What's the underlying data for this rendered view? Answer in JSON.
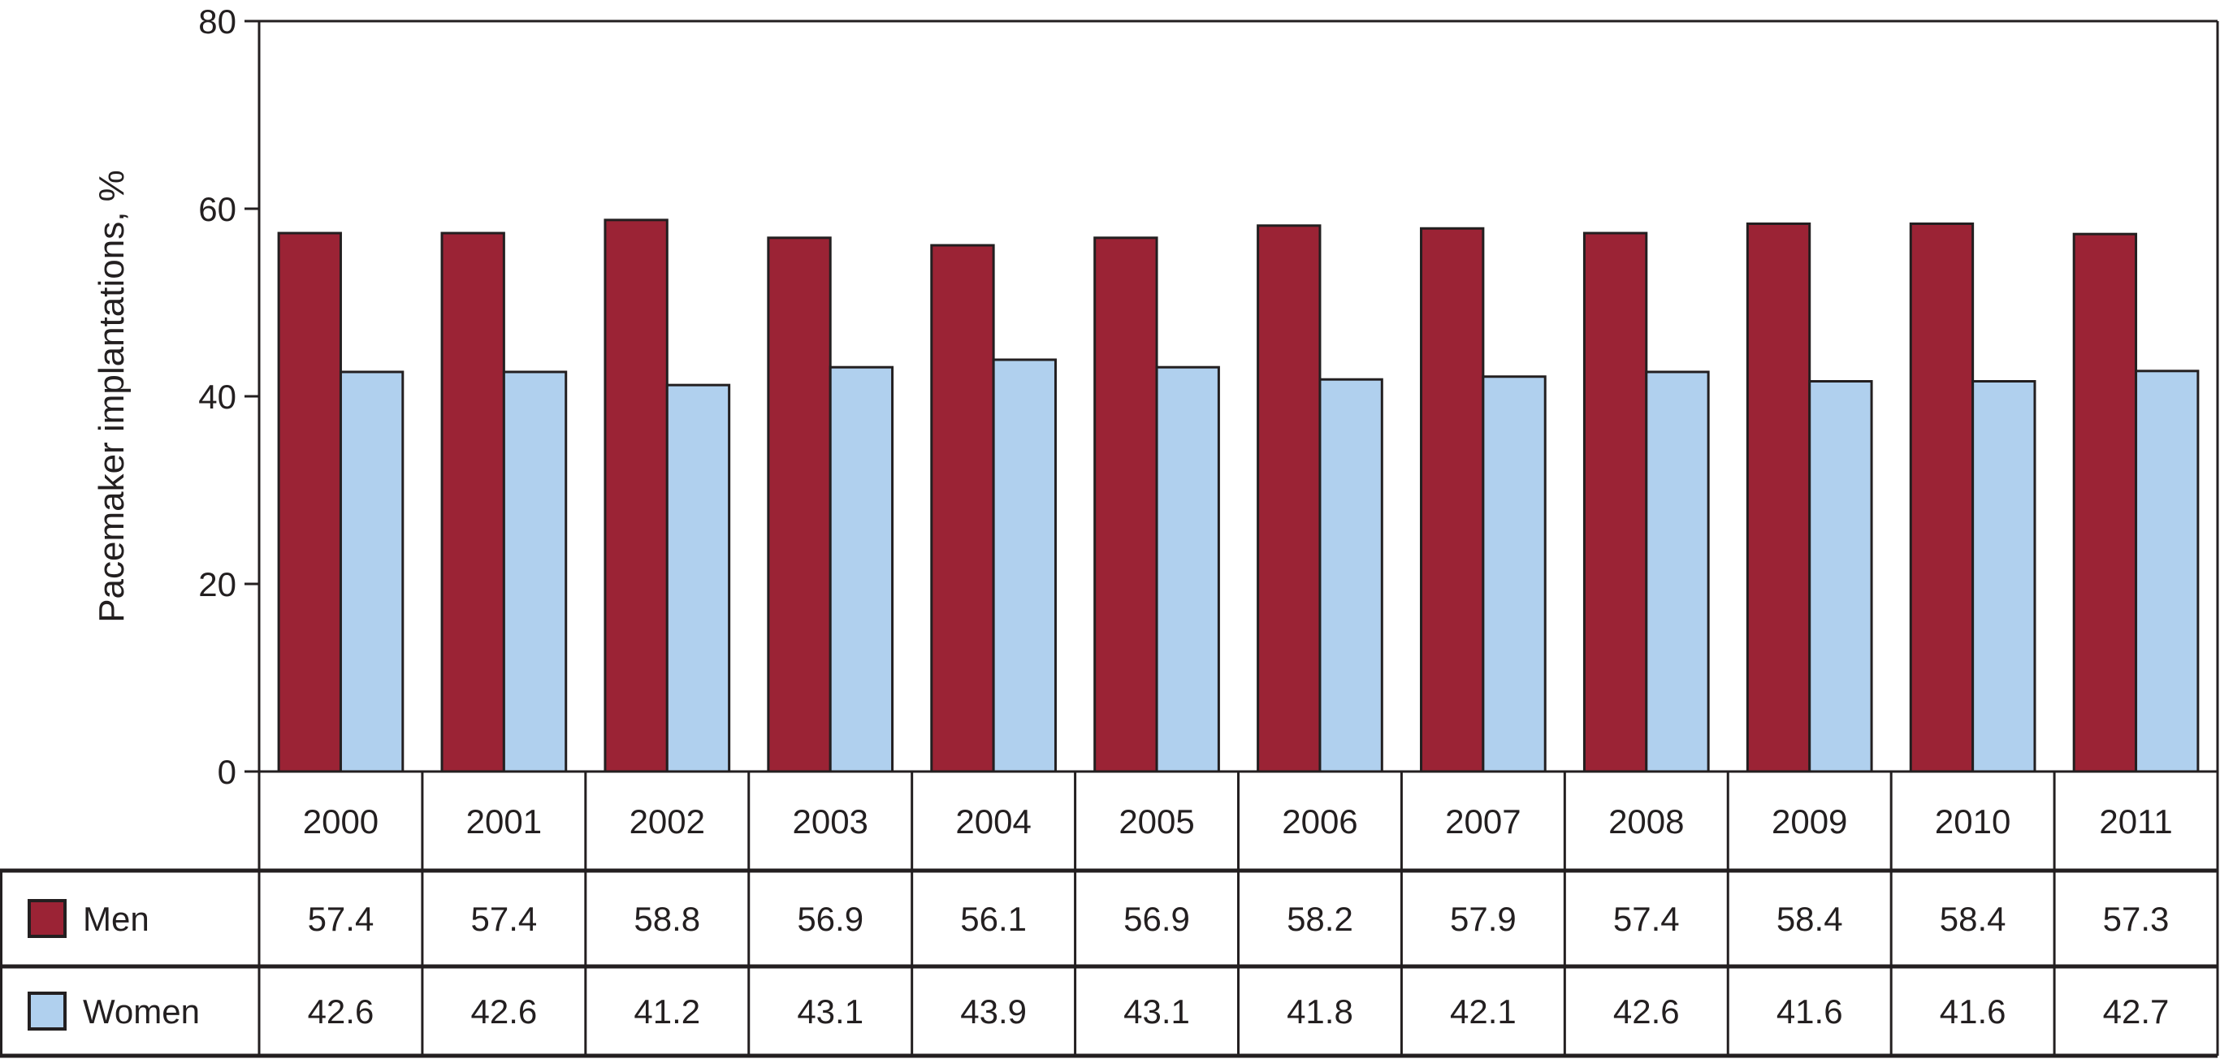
{
  "chart_data": {
    "type": "bar",
    "title": "",
    "xlabel": "",
    "ylabel": "Pacemaker implantations, %",
    "ylim": [
      0,
      80
    ],
    "yticks": [
      0,
      20,
      40,
      60,
      80
    ],
    "grid": false,
    "legend": "table-below",
    "categories": [
      "2000",
      "2001",
      "2002",
      "2003",
      "2004",
      "2005",
      "2006",
      "2007",
      "2008",
      "2009",
      "2010",
      "2011"
    ],
    "series": [
      {
        "name": "Men",
        "color": "#9b2335",
        "values": [
          57.4,
          57.4,
          58.8,
          56.9,
          56.1,
          56.9,
          58.2,
          57.9,
          57.4,
          58.4,
          58.4,
          57.3
        ]
      },
      {
        "name": "Women",
        "color": "#b0d0ee",
        "values": [
          42.6,
          42.6,
          41.2,
          43.1,
          43.9,
          43.1,
          41.8,
          42.1,
          42.6,
          41.6,
          41.6,
          42.7
        ]
      }
    ],
    "table_values": [
      [
        "57.4",
        "57.4",
        "58.8",
        "56.9",
        "56.1",
        "56.9",
        "58.2",
        "57.9",
        "57.4",
        "58.4",
        "58.4",
        "57.3"
      ],
      [
        "42.6",
        "42.6",
        "41.2",
        "43.1",
        "43.9",
        "43.1",
        "41.8",
        "42.1",
        "42.6",
        "41.6",
        "41.6",
        "42.7"
      ]
    ]
  }
}
